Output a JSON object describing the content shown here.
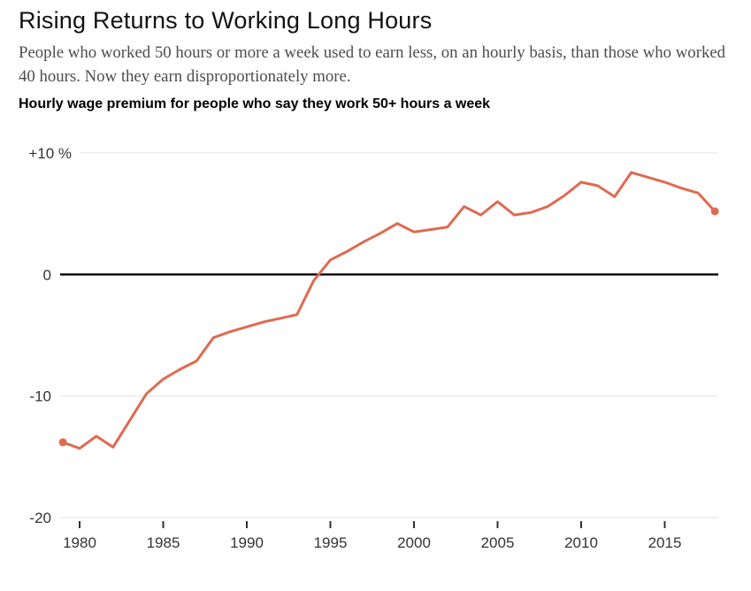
{
  "header": {
    "title": "Rising Returns to Working Long Hours",
    "subtitle": "People who worked 50 hours or more a week used to earn less, on an hourly basis, than those who worked 40 hours. Now they earn disproportionately more.",
    "chart_heading": "Hourly wage premium for people who say they work 50+ hours a week"
  },
  "chart_data": {
    "type": "line",
    "title": "Hourly wage premium for people who say they work 50+ hours a week",
    "x": [
      1979,
      1980,
      1981,
      1982,
      1983,
      1984,
      1985,
      1986,
      1987,
      1988,
      1989,
      1990,
      1991,
      1992,
      1993,
      1994,
      1995,
      1996,
      1997,
      1998,
      1999,
      2000,
      2001,
      2002,
      2003,
      2004,
      2005,
      2006,
      2007,
      2008,
      2009,
      2010,
      2011,
      2012,
      2013,
      2014,
      2015,
      2016,
      2017,
      2018
    ],
    "series": [
      {
        "name": "Hourly wage premium for people who work 50+ hours a week (%)",
        "values": [
          -13.8,
          -14.3,
          -13.3,
          -14.2,
          -12.0,
          -9.8,
          -8.6,
          -7.8,
          -7.1,
          -5.2,
          -4.7,
          -4.3,
          -3.9,
          -3.6,
          -3.3,
          -0.5,
          1.2,
          1.9,
          2.7,
          3.4,
          4.2,
          3.5,
          3.7,
          3.9,
          5.6,
          4.9,
          6.0,
          4.9,
          5.1,
          5.6,
          6.5,
          7.6,
          7.3,
          6.4,
          8.4,
          8.0,
          7.6,
          7.1,
          6.7,
          5.2
        ]
      }
    ],
    "x_ticks": [
      1980,
      1985,
      1990,
      1995,
      2000,
      2005,
      2010,
      2015
    ],
    "y_ticks": [
      {
        "value": 10,
        "label": "+10 %"
      },
      {
        "value": 0,
        "label": "0"
      },
      {
        "value": -10,
        "label": "-10"
      },
      {
        "value": -20,
        "label": "-20"
      }
    ],
    "xlim": [
      1979,
      2018
    ],
    "ylim": [
      -20,
      10
    ],
    "grid": "horizontal",
    "legend": "none",
    "line_color": "#df6a51",
    "zero_line_color": "#121212",
    "grid_color": "#e2e2e2",
    "tick_color": "#333333",
    "endpoint_markers": true
  }
}
